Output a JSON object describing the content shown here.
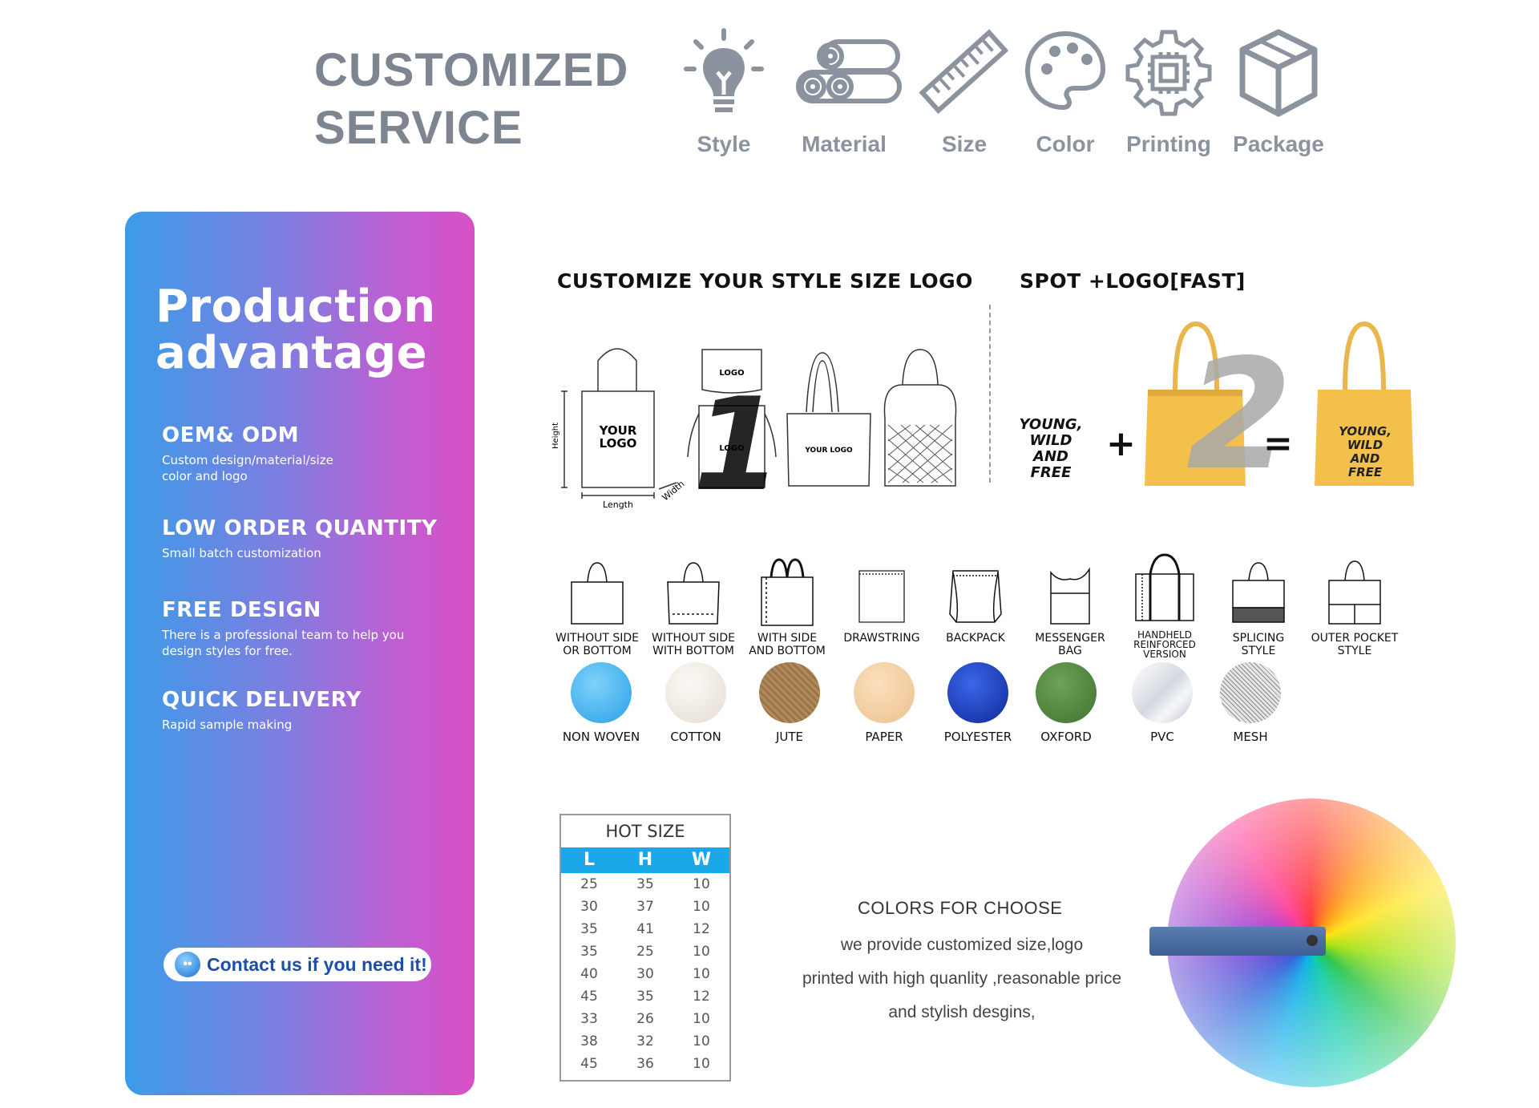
{
  "header": {
    "title_line1": "CUSTOMIZED",
    "title_line2": "SERVICE",
    "services": [
      {
        "label": "Style",
        "icon": "lightbulb-icon"
      },
      {
        "label": "Material",
        "icon": "fabric-rolls-icon"
      },
      {
        "label": "Size",
        "icon": "ruler-icon"
      },
      {
        "label": "Color",
        "icon": "palette-icon"
      },
      {
        "label": "Printing",
        "icon": "gear-chip-icon"
      },
      {
        "label": "Package",
        "icon": "box-icon"
      }
    ]
  },
  "advantage": {
    "title_line1": "Production",
    "title_line2": "advantage",
    "items": [
      {
        "title": "OEM& ODM",
        "desc": "Custom design/material/size\ncolor and logo"
      },
      {
        "title": "LOW ORDER QUANTITY",
        "desc": "Small batch customization"
      },
      {
        "title": "FREE DESIGN",
        "desc": "There is a professional team to help you\ndesign styles for free."
      },
      {
        "title": "QUICK DELIVERY",
        "desc": "Rapid sample making"
      }
    ],
    "contact_label": "Contact us if you need it!"
  },
  "customize": {
    "heading1": "CUSTOMIZE YOUR STYLE SIZE LOGO",
    "heading2": "SPOT +LOGO[FAST]",
    "num1": "1",
    "num2": "2",
    "your_logo": "YOUR LOGO",
    "logo": "LOGO",
    "height_label": "Height",
    "length_label": "Length",
    "width_label": "Width",
    "print_text_1": "YOUNG,",
    "print_text_2": "WILD",
    "print_text_3": "AND FREE",
    "plus": "+",
    "equals": "="
  },
  "styles": [
    {
      "name": "WITHOUT SIDE\nOR BOTTOM"
    },
    {
      "name": "WITHOUT SIDE\nWITH BOTTOM"
    },
    {
      "name": "WITH SIDE\nAND BOTTOM"
    },
    {
      "name": "DRAWSTRING"
    },
    {
      "name": "BACKPACK"
    },
    {
      "name": "MESSENGER\nBAG"
    },
    {
      "name": "HANDHELD\nREINFORCED\nVERSION"
    },
    {
      "name": "SPLICING\nSTYLE"
    },
    {
      "name": "OUTER POCKET\nSTYLE"
    }
  ],
  "materials": [
    {
      "name": "NON WOVEN",
      "color": "#3fb3ef"
    },
    {
      "name": "COTTON",
      "color": "#efe9e2"
    },
    {
      "name": "JUTE",
      "color": "#b08a5b"
    },
    {
      "name": "PAPER",
      "color": "#f3cfa3"
    },
    {
      "name": "POLYESTER",
      "color": "#1a3fc0"
    },
    {
      "name": "OXFORD",
      "color": "#4f8b3c"
    },
    {
      "name": "PVC",
      "color": "#dfe3ea"
    },
    {
      "name": "MESH",
      "color": "#c9c9c9"
    }
  ],
  "hot_size": {
    "caption": "HOT SIZE",
    "headers": [
      "L",
      "H",
      "W"
    ],
    "rows": [
      [
        "25",
        "35",
        "10"
      ],
      [
        "30",
        "37",
        "10"
      ],
      [
        "35",
        "41",
        "12"
      ],
      [
        "35",
        "25",
        "10"
      ],
      [
        "40",
        "30",
        "10"
      ],
      [
        "45",
        "35",
        "12"
      ],
      [
        "33",
        "26",
        "10"
      ],
      [
        "38",
        "32",
        "10"
      ],
      [
        "45",
        "36",
        "10"
      ]
    ]
  },
  "colors": {
    "heading": "COLORS FOR CHOOSE",
    "line1": "we provide customized size,logo",
    "line2": "printed with high quanlity ,reasonable price",
    "line3": "and stylish desgins,"
  }
}
